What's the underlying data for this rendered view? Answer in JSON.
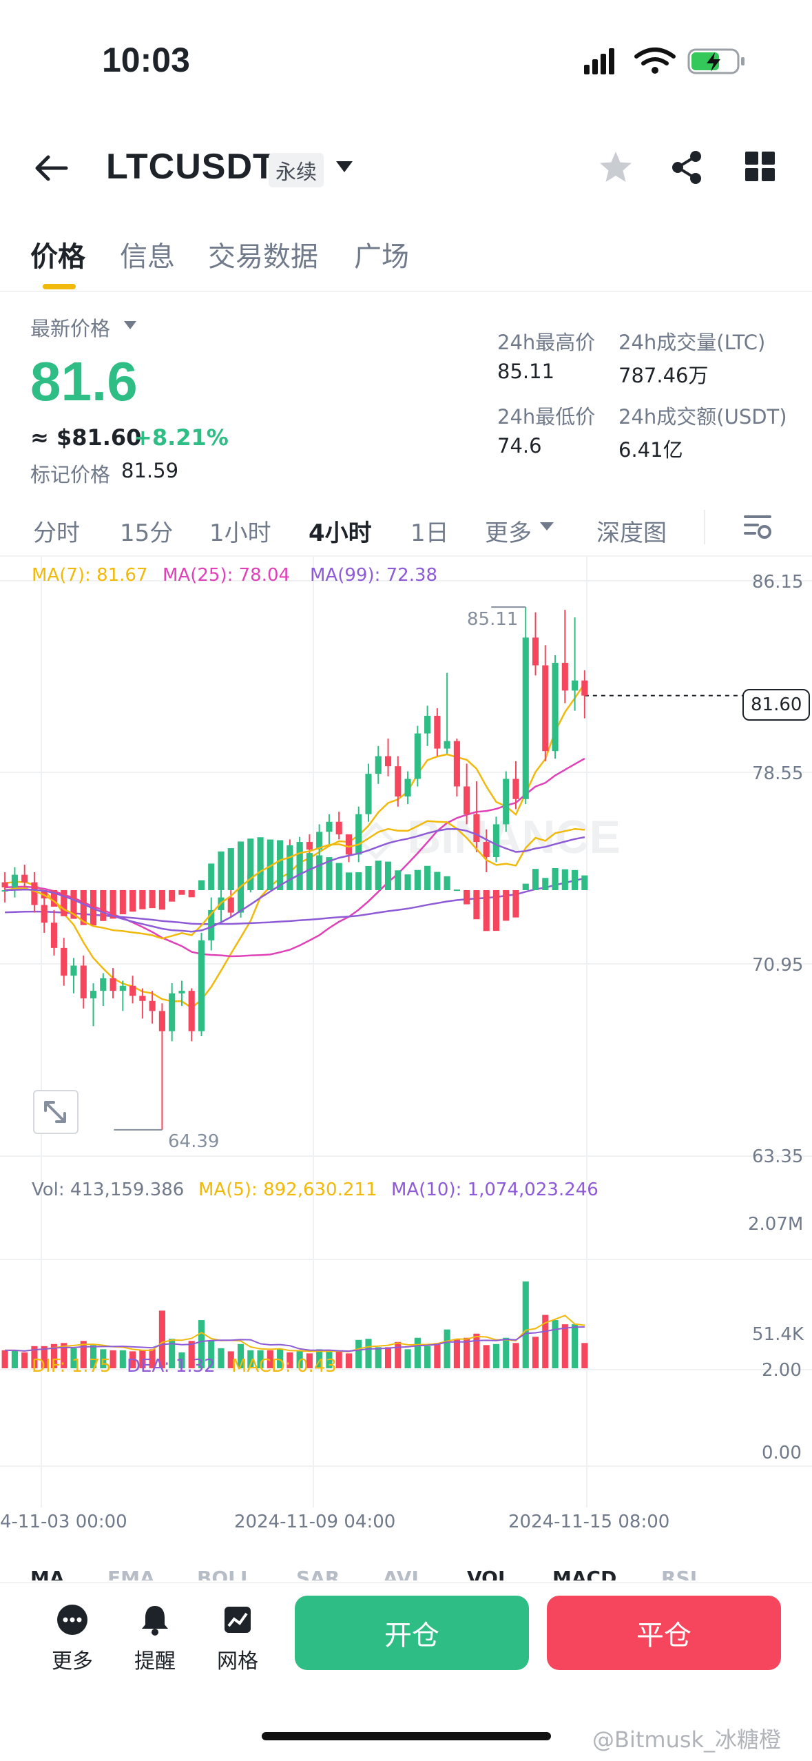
{
  "status": {
    "time": "10:03"
  },
  "header": {
    "pair": "LTCUSDT",
    "contract": "永续"
  },
  "tabs": [
    "价格",
    "信息",
    "交易数据",
    "广场"
  ],
  "price": {
    "latest_label": "最新价格",
    "last": "81.6",
    "usd": "≈ $81.60",
    "change": "+8.21%",
    "mark_label": "标记价格",
    "mark": "81.59"
  },
  "stats": {
    "high_label": "24h最高价",
    "high": "85.11",
    "low_label": "24h最低价",
    "low": "74.6",
    "vol_label": "24h成交量(LTC)",
    "vol": "787.46万",
    "amt_label": "24h成交额(USDT)",
    "amt": "6.41亿"
  },
  "intervals": [
    "分时",
    "15分",
    "1小时",
    "4小时",
    "1日",
    "更多",
    "深度图"
  ],
  "chart": {
    "ma7": "MA(7): 81.67",
    "ma25": "MA(25): 78.04",
    "ma99": "MA(99): 72.38",
    "y_ticks": [
      "86.15",
      "78.55",
      "70.95",
      "63.35"
    ],
    "current_price": "81.60",
    "max_label": "85.11",
    "min_label": "64.39",
    "vol_text": "Vol: 413,159.386",
    "vol_ma5": "MA(5): 892,630.211",
    "vol_ma10": "MA(10): 1,074,023.246",
    "vol_ticks": [
      "2.07M",
      "51.4K"
    ],
    "dif": "DIF: 1.75",
    "dea": "DEA: 1.32",
    "macd": "MACD: 0.43",
    "macd_ticks": [
      "2.00",
      "0.00"
    ],
    "x_ticks": [
      "4-11-03 00:00",
      "2024-11-09 04:00",
      "2024-11-15 08:00"
    ]
  },
  "indicators": [
    "MA",
    "EMA",
    "BOLL",
    "SAR",
    "AVL",
    "VOL",
    "MACD",
    "RSI"
  ],
  "bottom": {
    "more": "更多",
    "alert": "提醒",
    "grid": "网格",
    "open": "开仓",
    "close": "平仓"
  },
  "watermark": "@Bitmusk_冰糖橙",
  "colors": {
    "up": "#2ebd85",
    "down": "#f6465d",
    "accent": "#f0b90b",
    "ma7": "#f0b90b",
    "ma25": "#e040b8",
    "ma99": "#8e5bd6"
  },
  "chart_data": {
    "type": "candlestick",
    "ylim": [
      63.35,
      86.15
    ],
    "candles": [
      [
        74.2,
        74.6,
        73.4,
        74.0
      ],
      [
        74.0,
        74.8,
        73.6,
        74.5
      ],
      [
        74.5,
        74.9,
        73.9,
        74.2
      ],
      [
        74.2,
        74.6,
        73.0,
        73.3
      ],
      [
        73.3,
        73.8,
        72.2,
        72.6
      ],
      [
        72.6,
        73.1,
        71.3,
        71.6
      ],
      [
        71.6,
        72.0,
        70.1,
        70.5
      ],
      [
        70.5,
        71.2,
        69.8,
        70.9
      ],
      [
        70.9,
        71.3,
        69.2,
        69.6
      ],
      [
        69.6,
        70.2,
        68.5,
        69.9
      ],
      [
        69.9,
        70.6,
        69.3,
        70.4
      ],
      [
        70.4,
        70.8,
        69.6,
        69.9
      ],
      [
        69.9,
        70.3,
        69.1,
        70.1
      ],
      [
        70.1,
        70.5,
        69.4,
        69.7
      ],
      [
        69.7,
        70.0,
        68.8,
        69.5
      ],
      [
        69.5,
        69.9,
        68.6,
        69.1
      ],
      [
        69.1,
        69.4,
        64.39,
        68.3
      ],
      [
        68.3,
        70.2,
        67.9,
        69.8
      ],
      [
        69.8,
        70.3,
        69.3,
        69.9
      ],
      [
        69.9,
        70.0,
        67.9,
        68.3
      ],
      [
        68.3,
        72.2,
        68.1,
        71.9
      ],
      [
        71.9,
        73.6,
        71.5,
        73.1
      ],
      [
        73.1,
        74.0,
        72.6,
        73.6
      ],
      [
        73.6,
        73.9,
        72.8,
        73.0
      ],
      [
        73.0,
        74.6,
        72.8,
        74.3
      ],
      [
        74.3,
        75.0,
        73.8,
        74.5
      ],
      [
        74.5,
        75.2,
        74.0,
        74.9
      ],
      [
        74.9,
        75.4,
        74.2,
        74.8
      ],
      [
        74.8,
        75.8,
        74.5,
        75.5
      ],
      [
        75.5,
        75.9,
        74.9,
        75.1
      ],
      [
        75.1,
        76.0,
        74.9,
        75.8
      ],
      [
        75.8,
        76.1,
        75.2,
        75.5
      ],
      [
        75.5,
        76.5,
        75.2,
        76.2
      ],
      [
        76.2,
        76.9,
        75.7,
        76.6
      ],
      [
        76.6,
        77.0,
        75.9,
        76.1
      ],
      [
        76.1,
        75.9,
        75.0,
        75.3
      ],
      [
        75.3,
        77.2,
        75.0,
        76.9
      ],
      [
        76.9,
        78.9,
        76.6,
        78.5
      ],
      [
        78.5,
        79.6,
        78.1,
        79.2
      ],
      [
        79.2,
        79.9,
        78.4,
        78.8
      ],
      [
        78.8,
        79.2,
        77.2,
        77.6
      ],
      [
        77.6,
        78.6,
        77.3,
        78.3
      ],
      [
        78.3,
        80.4,
        78.0,
        80.1
      ],
      [
        80.1,
        81.2,
        79.6,
        80.8
      ],
      [
        80.8,
        81.1,
        79.2,
        79.5
      ],
      [
        79.5,
        82.5,
        79.3,
        79.8
      ],
      [
        79.8,
        79.9,
        77.6,
        78.0
      ],
      [
        78.0,
        78.9,
        76.5,
        76.9
      ],
      [
        76.9,
        78.2,
        75.4,
        75.8
      ],
      [
        75.8,
        76.3,
        74.6,
        75.2
      ],
      [
        75.2,
        76.8,
        75.0,
        76.5
      ],
      [
        76.5,
        78.6,
        76.2,
        78.3
      ],
      [
        78.3,
        79.0,
        77.1,
        77.5
      ],
      [
        77.5,
        85.11,
        77.3,
        83.9
      ],
      [
        83.9,
        84.9,
        82.4,
        82.8
      ],
      [
        82.8,
        83.6,
        79.0,
        79.4
      ],
      [
        79.4,
        83.2,
        79.1,
        82.9
      ],
      [
        82.9,
        85.0,
        81.3,
        81.8
      ],
      [
        81.8,
        84.7,
        81.0,
        82.2
      ],
      [
        82.2,
        82.6,
        80.7,
        81.6
      ]
    ]
  }
}
